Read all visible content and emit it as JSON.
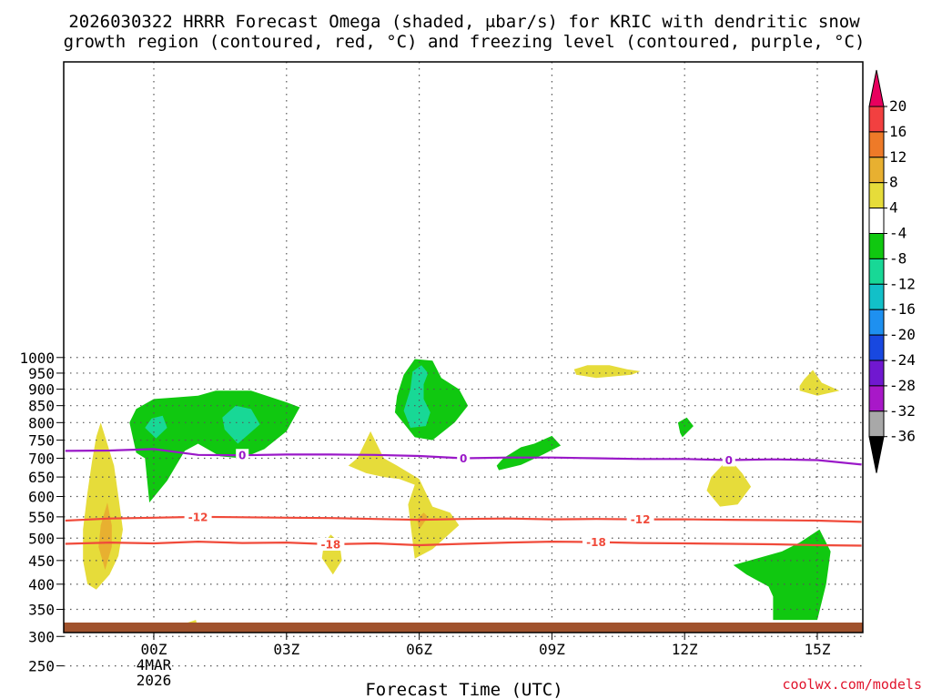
{
  "chart_data": {
    "type": "heatmap",
    "title_lines": [
      "2026030322 HRRR Forecast Omega (shaded, μbar/s) for KRIC with dendritic snow",
      "growth region (contoured, red, °C) and freezing level (contoured, purple, °C)"
    ],
    "xlabel": "Forecast Time (UTC)",
    "x_ticks": [
      {
        "t": 0,
        "lines": [
          "00Z",
          "4MAR",
          "2026"
        ]
      },
      {
        "t": 3,
        "lines": [
          "03Z"
        ]
      },
      {
        "t": 6,
        "lines": [
          "06Z"
        ]
      },
      {
        "t": 9,
        "lines": [
          "09Z"
        ]
      },
      {
        "t": 12,
        "lines": [
          "12Z"
        ]
      },
      {
        "t": 15,
        "lines": [
          "15Z"
        ]
      }
    ],
    "xlim": [
      -2,
      16
    ],
    "y_ticks": [
      250,
      300,
      350,
      400,
      450,
      500,
      550,
      600,
      650,
      700,
      750,
      800,
      850,
      900,
      950,
      1000
    ],
    "ylim": [
      200,
      1010
    ],
    "ylabel": "",
    "colorbar": {
      "labels": [
        "20",
        "16",
        "12",
        "8",
        "4",
        "-4",
        "-8",
        "-12",
        "-16",
        "-20",
        "-24",
        "-28",
        "-32",
        "-36"
      ],
      "colors": [
        "#e8005e",
        "#f24040",
        "#ee7a28",
        "#e8b030",
        "#e6dc3a",
        "#ffffff",
        "#10c810",
        "#18d896",
        "#12c0c8",
        "#1e90f0",
        "#1848e0",
        "#7018d0",
        "#a818c8",
        "#a8a8a8",
        "#000000"
      ]
    },
    "contours": [
      {
        "level": "-18",
        "color": "#f04a3a",
        "points": [
          [
            -2,
            487
          ],
          [
            -1,
            490
          ],
          [
            0,
            488
          ],
          [
            1,
            492
          ],
          [
            2,
            489
          ],
          [
            3,
            490
          ],
          [
            4,
            486
          ],
          [
            5,
            488
          ],
          [
            6,
            484
          ],
          [
            7,
            487
          ],
          [
            8,
            490
          ],
          [
            9,
            492
          ],
          [
            10,
            491
          ],
          [
            11,
            489
          ],
          [
            12,
            488
          ],
          [
            13,
            487
          ],
          [
            14,
            486
          ],
          [
            15,
            484
          ],
          [
            16,
            483
          ]
        ],
        "label_at": [
          4,
          10
        ]
      },
      {
        "level": "-12",
        "color": "#f04a3a",
        "points": [
          [
            -2,
            541
          ],
          [
            -1,
            546
          ],
          [
            0,
            548
          ],
          [
            1,
            550
          ],
          [
            2,
            549
          ],
          [
            3,
            548
          ],
          [
            4,
            547
          ],
          [
            5,
            545
          ],
          [
            6,
            543
          ],
          [
            7,
            545
          ],
          [
            8,
            546
          ],
          [
            9,
            544
          ],
          [
            10,
            545
          ],
          [
            11,
            544
          ],
          [
            12,
            544
          ],
          [
            13,
            543
          ],
          [
            14,
            542
          ],
          [
            15,
            541
          ],
          [
            16,
            538
          ]
        ],
        "label_at": [
          1,
          11
        ]
      },
      {
        "level": "0",
        "color": "#9a18c8",
        "points": [
          [
            -2,
            720
          ],
          [
            -1,
            721
          ],
          [
            0,
            725
          ],
          [
            1,
            709
          ],
          [
            2,
            708
          ],
          [
            3,
            710
          ],
          [
            4,
            710
          ],
          [
            5,
            709
          ],
          [
            6,
            706
          ],
          [
            7,
            700
          ],
          [
            8,
            702
          ],
          [
            9,
            702
          ],
          [
            10,
            700
          ],
          [
            11,
            698
          ],
          [
            12,
            698
          ],
          [
            13,
            695
          ],
          [
            14,
            697
          ],
          [
            15,
            695
          ],
          [
            16,
            683
          ]
        ],
        "label_at": [
          2,
          7,
          13
        ]
      }
    ],
    "shaded_regions": [
      {
        "value": 8,
        "color": "#e6dc3a",
        "points": [
          [
            -1.3,
            389
          ],
          [
            -1.0,
            420
          ],
          [
            -0.8,
            460
          ],
          [
            -0.7,
            520
          ],
          [
            -0.8,
            600
          ],
          [
            -0.9,
            680
          ],
          [
            -1.1,
            760
          ],
          [
            -1.2,
            800
          ],
          [
            -1.3,
            760
          ],
          [
            -1.4,
            690
          ],
          [
            -1.5,
            610
          ],
          [
            -1.6,
            520
          ],
          [
            -1.6,
            450
          ],
          [
            -1.5,
            400
          ]
        ]
      },
      {
        "value": 12,
        "color": "#e8b030",
        "points": [
          [
            -1.1,
            430
          ],
          [
            -0.95,
            480
          ],
          [
            -0.95,
            530
          ],
          [
            -1.05,
            585
          ],
          [
            -1.2,
            530
          ],
          [
            -1.25,
            480
          ]
        ]
      },
      {
        "value": 4,
        "color": "#e6dc3a",
        "points": [
          [
            -0.1,
            272
          ],
          [
            0.9,
            272
          ],
          [
            1.05,
            300
          ],
          [
            0.95,
            330
          ],
          [
            0.45,
            317
          ],
          [
            -0.1,
            297
          ]
        ]
      },
      {
        "value": 4,
        "color": "#e6dc3a",
        "points": [
          [
            4.05,
            420
          ],
          [
            4.25,
            450
          ],
          [
            4.2,
            490
          ],
          [
            4.0,
            508
          ],
          [
            3.85,
            490
          ],
          [
            3.8,
            455
          ]
        ]
      },
      {
        "value": 4,
        "color": "#e6dc3a",
        "points": [
          [
            5.9,
            454
          ],
          [
            6.3,
            475
          ],
          [
            6.9,
            530
          ],
          [
            6.7,
            560
          ],
          [
            6.3,
            575
          ],
          [
            6.0,
            645
          ],
          [
            5.5,
            680
          ],
          [
            5.2,
            700
          ],
          [
            4.9,
            775
          ],
          [
            4.6,
            700
          ],
          [
            4.4,
            680
          ],
          [
            4.8,
            660
          ],
          [
            5.2,
            650
          ],
          [
            5.55,
            645
          ],
          [
            5.9,
            630
          ],
          [
            5.75,
            580
          ]
        ]
      },
      {
        "value": 8,
        "color": "#e8b030",
        "points": [
          [
            6.0,
            520
          ],
          [
            6.2,
            550
          ],
          [
            6.1,
            560
          ],
          [
            5.95,
            545
          ]
        ]
      },
      {
        "value": 4,
        "color": "#e6dc3a",
        "points": [
          [
            12.8,
            575
          ],
          [
            13.2,
            580
          ],
          [
            13.5,
            625
          ],
          [
            13.3,
            660
          ],
          [
            13.0,
            700
          ],
          [
            12.8,
            675
          ],
          [
            12.6,
            650
          ],
          [
            12.5,
            615
          ]
        ]
      },
      {
        "value": 4,
        "color": "#e6dc3a",
        "points": [
          [
            10.0,
            935
          ],
          [
            10.8,
            945
          ],
          [
            11.0,
            956
          ],
          [
            10.7,
            962
          ],
          [
            10.3,
            975
          ],
          [
            9.8,
            975
          ],
          [
            9.5,
            962
          ],
          [
            9.55,
            945
          ]
        ]
      },
      {
        "value": 4,
        "color": "#e6dc3a",
        "points": [
          [
            14.6,
            895
          ],
          [
            15.0,
            880
          ],
          [
            15.5,
            895
          ],
          [
            15.1,
            920
          ],
          [
            14.9,
            960
          ],
          [
            14.7,
            930
          ],
          [
            14.6,
            910
          ]
        ]
      },
      {
        "value": -4,
        "color": "#10c810",
        "points": [
          [
            -0.1,
            585
          ],
          [
            0.3,
            640
          ],
          [
            0.7,
            720
          ],
          [
            1.0,
            740
          ],
          [
            1.5,
            705
          ],
          [
            2.0,
            700
          ],
          [
            2.5,
            725
          ],
          [
            3.0,
            775
          ],
          [
            3.3,
            845
          ],
          [
            3.0,
            860
          ],
          [
            2.2,
            895
          ],
          [
            1.4,
            895
          ],
          [
            1.0,
            880
          ],
          [
            0.5,
            875
          ],
          [
            0.0,
            870
          ],
          [
            -0.4,
            840
          ],
          [
            -0.55,
            800
          ],
          [
            -0.4,
            715
          ],
          [
            -0.2,
            700
          ]
        ]
      },
      {
        "value": -8,
        "color": "#18d896",
        "points": [
          [
            0.05,
            755
          ],
          [
            0.3,
            785
          ],
          [
            0.2,
            820
          ],
          [
            -0.05,
            812
          ],
          [
            -0.2,
            785
          ]
        ]
      },
      {
        "value": -8,
        "color": "#18d896",
        "points": [
          [
            1.9,
            740
          ],
          [
            2.4,
            795
          ],
          [
            2.2,
            840
          ],
          [
            1.85,
            850
          ],
          [
            1.55,
            815
          ],
          [
            1.6,
            780
          ]
        ]
      },
      {
        "value": -4,
        "color": "#10c810",
        "points": [
          [
            5.9,
            758
          ],
          [
            6.3,
            750
          ],
          [
            6.8,
            800
          ],
          [
            7.1,
            850
          ],
          [
            6.9,
            900
          ],
          [
            6.5,
            935
          ],
          [
            6.3,
            990
          ],
          [
            5.9,
            995
          ],
          [
            5.65,
            945
          ],
          [
            5.5,
            880
          ],
          [
            5.45,
            830
          ],
          [
            5.7,
            790
          ]
        ]
      },
      {
        "value": -8,
        "color": "#18d896",
        "points": [
          [
            5.8,
            785
          ],
          [
            6.15,
            790
          ],
          [
            6.25,
            830
          ],
          [
            6.1,
            870
          ],
          [
            6.1,
            915
          ],
          [
            6.2,
            950
          ],
          [
            6.05,
            975
          ],
          [
            5.85,
            955
          ],
          [
            5.8,
            900
          ],
          [
            5.65,
            835
          ]
        ]
      },
      {
        "value": -4,
        "color": "#10c810",
        "points": [
          [
            7.8,
            200
          ],
          [
            8.2,
            210
          ],
          [
            8.4,
            225
          ],
          [
            8.2,
            245
          ],
          [
            8.0,
            280
          ],
          [
            7.8,
            265
          ],
          [
            7.75,
            230
          ]
        ]
      },
      {
        "value": -4,
        "color": "#10c810",
        "points": [
          [
            7.8,
            668
          ],
          [
            8.3,
            682
          ],
          [
            8.8,
            710
          ],
          [
            9.2,
            735
          ],
          [
            9.0,
            762
          ],
          [
            8.6,
            740
          ],
          [
            8.3,
            730
          ],
          [
            7.9,
            700
          ],
          [
            7.75,
            680
          ]
        ]
      },
      {
        "value": -4,
        "color": "#10c810",
        "points": [
          [
            11.95,
            758
          ],
          [
            12.2,
            790
          ],
          [
            12.05,
            815
          ],
          [
            11.85,
            800
          ],
          [
            11.9,
            770
          ]
        ]
      },
      {
        "value": -4,
        "color": "#10c810",
        "points": [
          [
            14.0,
            330
          ],
          [
            15.0,
            330
          ],
          [
            15.2,
            400
          ],
          [
            15.3,
            470
          ],
          [
            15.05,
            520
          ],
          [
            14.6,
            490
          ],
          [
            14.2,
            470
          ],
          [
            13.1,
            440
          ],
          [
            13.4,
            420
          ],
          [
            13.9,
            395
          ],
          [
            14.0,
            375
          ]
        ]
      },
      {
        "value": -4,
        "color": "#10c810",
        "points": [
          [
            15.1,
            215
          ],
          [
            15.2,
            240
          ],
          [
            15.05,
            265
          ],
          [
            14.9,
            275
          ],
          [
            14.65,
            240
          ],
          [
            14.8,
            225
          ]
        ]
      }
    ]
  },
  "credit": "coolwx.com/models",
  "ground_color": "#a0522d",
  "grid_color": "#555555"
}
